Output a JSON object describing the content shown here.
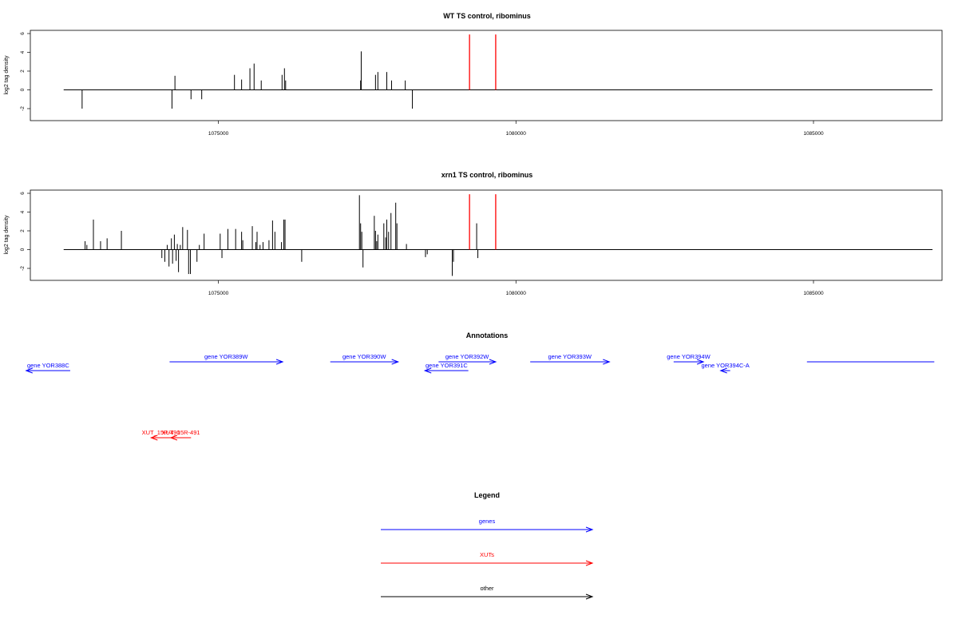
{
  "chart_data": [
    {
      "type": "bar",
      "title": "WT TS control, ribominus",
      "xlabel": "",
      "ylabel": "log2 tag density",
      "xlim": [
        1071840,
        1087160
      ],
      "ylim": [
        -3.2,
        6.2
      ],
      "xticks": [
        1075000,
        1080000,
        1085000
      ],
      "xtick_labels": [
        "1075000",
        "1080000",
        "1085000"
      ],
      "yticks": [
        -2,
        0,
        2,
        4,
        6
      ],
      "ytick_labels": [
        "-2",
        "0",
        "2",
        "4",
        "6"
      ],
      "grid": false,
      "baseline_range": [
        1072400,
        1087000
      ],
      "bars": [
        {
          "x": 1072710,
          "y": -2.0
        },
        {
          "x": 1074220,
          "y": -2.0
        },
        {
          "x": 1074270,
          "y": 1.5
        },
        {
          "x": 1074540,
          "y": -1.0
        },
        {
          "x": 1074720,
          "y": -1.0
        },
        {
          "x": 1075270,
          "y": 1.6
        },
        {
          "x": 1075390,
          "y": 1.1
        },
        {
          "x": 1075530,
          "y": 2.3
        },
        {
          "x": 1075600,
          "y": 2.8
        },
        {
          "x": 1075720,
          "y": 1.0
        },
        {
          "x": 1076070,
          "y": 1.6
        },
        {
          "x": 1076110,
          "y": 2.3
        },
        {
          "x": 1076130,
          "y": 1.0
        },
        {
          "x": 1077390,
          "y": 1.0
        },
        {
          "x": 1077400,
          "y": 4.1
        },
        {
          "x": 1077640,
          "y": 1.6
        },
        {
          "x": 1077680,
          "y": 1.9
        },
        {
          "x": 1077830,
          "y": 1.9
        },
        {
          "x": 1077910,
          "y": 1.0
        },
        {
          "x": 1078140,
          "y": 1.0
        },
        {
          "x": 1078260,
          "y": -2.0
        }
      ],
      "red_lines": [
        1079220,
        1079660
      ],
      "colors": {
        "bars": "#000000",
        "red_lines": "#ff0000"
      }
    },
    {
      "type": "bar",
      "title": "xrn1 TS control, ribominus",
      "xlabel": "",
      "ylabel": "log2 tag density",
      "xlim": [
        1071840,
        1087160
      ],
      "ylim": [
        -3.2,
        6.2
      ],
      "xticks": [
        1075000,
        1080000,
        1085000
      ],
      "xtick_labels": [
        "1075000",
        "1080000",
        "1085000"
      ],
      "yticks": [
        -2,
        0,
        2,
        4,
        6
      ],
      "ytick_labels": [
        "-2",
        "0",
        "2",
        "4",
        "6"
      ],
      "grid": false,
      "baseline_range": [
        1072400,
        1087000
      ],
      "bars": [
        {
          "x": 1072760,
          "y": 0.9
        },
        {
          "x": 1072790,
          "y": 0.5
        },
        {
          "x": 1072900,
          "y": 3.2
        },
        {
          "x": 1073020,
          "y": 0.9
        },
        {
          "x": 1073130,
          "y": 1.2
        },
        {
          "x": 1073370,
          "y": 2.0
        },
        {
          "x": 1074050,
          "y": -0.9
        },
        {
          "x": 1074100,
          "y": -1.3
        },
        {
          "x": 1074140,
          "y": 0.5
        },
        {
          "x": 1074170,
          "y": -1.8
        },
        {
          "x": 1074210,
          "y": 1.2
        },
        {
          "x": 1074230,
          "y": -1.5
        },
        {
          "x": 1074260,
          "y": 1.6
        },
        {
          "x": 1074290,
          "y": -1.2
        },
        {
          "x": 1074310,
          "y": 0.6
        },
        {
          "x": 1074330,
          "y": -2.4
        },
        {
          "x": 1074360,
          "y": 0.5
        },
        {
          "x": 1074400,
          "y": 2.4
        },
        {
          "x": 1074480,
          "y": 2.1
        },
        {
          "x": 1074500,
          "y": -2.6
        },
        {
          "x": 1074530,
          "y": -2.6
        },
        {
          "x": 1074640,
          "y": -1.3
        },
        {
          "x": 1074680,
          "y": 0.5
        },
        {
          "x": 1074760,
          "y": 1.7
        },
        {
          "x": 1075030,
          "y": 1.7
        },
        {
          "x": 1075060,
          "y": -0.9
        },
        {
          "x": 1075160,
          "y": 2.2
        },
        {
          "x": 1075290,
          "y": 2.2
        },
        {
          "x": 1075390,
          "y": 1.9
        },
        {
          "x": 1075410,
          "y": 1.0
        },
        {
          "x": 1075570,
          "y": 2.5
        },
        {
          "x": 1075630,
          "y": 0.8
        },
        {
          "x": 1075650,
          "y": 1.9
        },
        {
          "x": 1075700,
          "y": 0.5
        },
        {
          "x": 1075750,
          "y": 0.8
        },
        {
          "x": 1075850,
          "y": 1.0
        },
        {
          "x": 1075910,
          "y": 3.1
        },
        {
          "x": 1075950,
          "y": 1.9
        },
        {
          "x": 1076060,
          "y": 0.8
        },
        {
          "x": 1076100,
          "y": 3.2
        },
        {
          "x": 1076120,
          "y": 3.2
        },
        {
          "x": 1076400,
          "y": -1.3
        },
        {
          "x": 1077370,
          "y": 5.8
        },
        {
          "x": 1077390,
          "y": 2.8
        },
        {
          "x": 1077410,
          "y": 1.9
        },
        {
          "x": 1077430,
          "y": -1.9
        },
        {
          "x": 1077620,
          "y": 3.6
        },
        {
          "x": 1077640,
          "y": 2.0
        },
        {
          "x": 1077660,
          "y": 0.9
        },
        {
          "x": 1077680,
          "y": 1.6
        },
        {
          "x": 1077780,
          "y": 2.8
        },
        {
          "x": 1077810,
          "y": 1.3
        },
        {
          "x": 1077830,
          "y": 3.2
        },
        {
          "x": 1077860,
          "y": 1.9
        },
        {
          "x": 1077900,
          "y": 3.9
        },
        {
          "x": 1077980,
          "y": 5.0
        },
        {
          "x": 1078000,
          "y": 2.8
        },
        {
          "x": 1078160,
          "y": 0.6
        },
        {
          "x": 1078480,
          "y": -0.8
        },
        {
          "x": 1078510,
          "y": -0.5
        },
        {
          "x": 1078930,
          "y": -2.8
        },
        {
          "x": 1078950,
          "y": -1.3
        },
        {
          "x": 1079340,
          "y": 2.8
        },
        {
          "x": 1079360,
          "y": -0.9
        }
      ],
      "red_lines": [
        1079220,
        1079660
      ],
      "colors": {
        "bars": "#000000",
        "red_lines": "#ff0000"
      }
    }
  ],
  "annotations": {
    "title": "Annotations",
    "genes": [
      {
        "label": "gene YOR388C",
        "start": 1072510,
        "end": 1071770,
        "row": 2
      },
      {
        "label": "gene YOR389W",
        "start": 1074180,
        "end": 1076080,
        "row": 1
      },
      {
        "label": "gene YOR390W",
        "start": 1076880,
        "end": 1078020,
        "row": 1
      },
      {
        "label": "gene YOR391C",
        "start": 1079200,
        "end": 1078470,
        "row": 2
      },
      {
        "label": "gene YOR392W",
        "start": 1078700,
        "end": 1079660,
        "row": 1
      },
      {
        "label": "gene YOR393W",
        "start": 1080240,
        "end": 1081570,
        "row": 1
      },
      {
        "label": "gene YOR394W",
        "start": 1082650,
        "end": 1083150,
        "row": 1
      },
      {
        "label": "gene YOR394C-A",
        "start": 1083600,
        "end": 1083440,
        "row": 2
      },
      {
        "label": "",
        "start": 1084890,
        "end": 1087030,
        "row": 1,
        "no_arrow": true
      }
    ],
    "xuts": [
      {
        "label": "XUT_15R-490",
        "start": 1074200,
        "end": 1073870
      },
      {
        "label": "XUT_15R-491",
        "start": 1074540,
        "end": 1074200
      }
    ],
    "colors": {
      "genes": "#0000ff",
      "xuts": "#ff0000",
      "other": "#000000"
    }
  },
  "legend": {
    "title": "Legend",
    "items": [
      {
        "label": "genes",
        "color": "#0000ff"
      },
      {
        "label": "XUTs",
        "color": "#ff0000"
      },
      {
        "label": "other",
        "color": "#000000"
      }
    ]
  }
}
